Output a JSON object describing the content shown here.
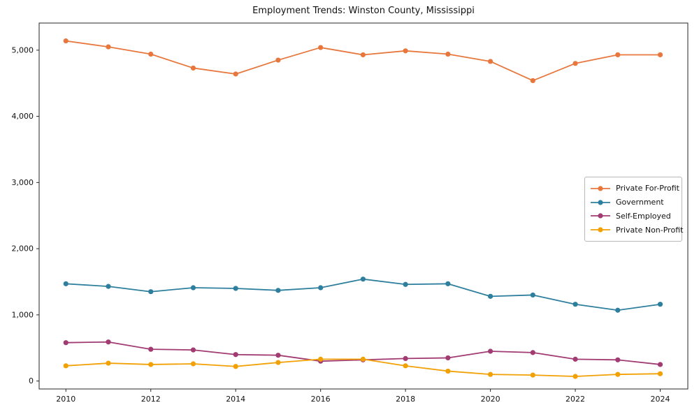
{
  "figure": {
    "title": "Employment Trends: Winston County, Mississippi"
  },
  "chart_data": {
    "type": "line",
    "title": "Employment Trends: Winston County, Mississippi",
    "xlabel": "",
    "ylabel": "",
    "grid": false,
    "legend_position": "center-right",
    "x": [
      2010,
      2011,
      2012,
      2013,
      2014,
      2015,
      2016,
      2017,
      2018,
      2019,
      2020,
      2021,
      2022,
      2023,
      2024
    ],
    "series": [
      {
        "name": "Private For-Profit",
        "color": "#e8773d",
        "values": [
          5140,
          5050,
          4940,
          4730,
          4640,
          4850,
          5040,
          4930,
          4990,
          4940,
          4830,
          4540,
          4800,
          4930,
          4930
        ]
      },
      {
        "name": "Government",
        "color": "#2e7f9e",
        "values": [
          1470,
          1430,
          1350,
          1410,
          1400,
          1370,
          1410,
          1540,
          1460,
          1470,
          1280,
          1300,
          1160,
          1070,
          1160
        ]
      },
      {
        "name": "Self-Employed",
        "color": "#a23b72",
        "values": [
          580,
          590,
          480,
          470,
          400,
          390,
          300,
          320,
          340,
          350,
          450,
          430,
          330,
          320,
          250
        ]
      },
      {
        "name": "Private Non-Profit",
        "color": "#f2a104",
        "values": [
          230,
          270,
          250,
          260,
          220,
          280,
          330,
          330,
          230,
          150,
          100,
          90,
          70,
          100,
          110
        ]
      }
    ],
    "xticks": [
      2010,
      2012,
      2014,
      2016,
      2018,
      2020,
      2022,
      2024
    ],
    "xtick_labels": [
      "2010",
      "2012",
      "2014",
      "2016",
      "2018",
      "2020",
      "2022",
      "2024"
    ],
    "yticks": [
      0,
      1000,
      2000,
      3000,
      4000,
      5000
    ],
    "ytick_labels": [
      "0",
      "1,000",
      "2,000",
      "3,000",
      "4,000",
      "5,000"
    ],
    "xlim": [
      2009.37,
      2024.65
    ],
    "ylim": [
      -120,
      5410
    ]
  }
}
